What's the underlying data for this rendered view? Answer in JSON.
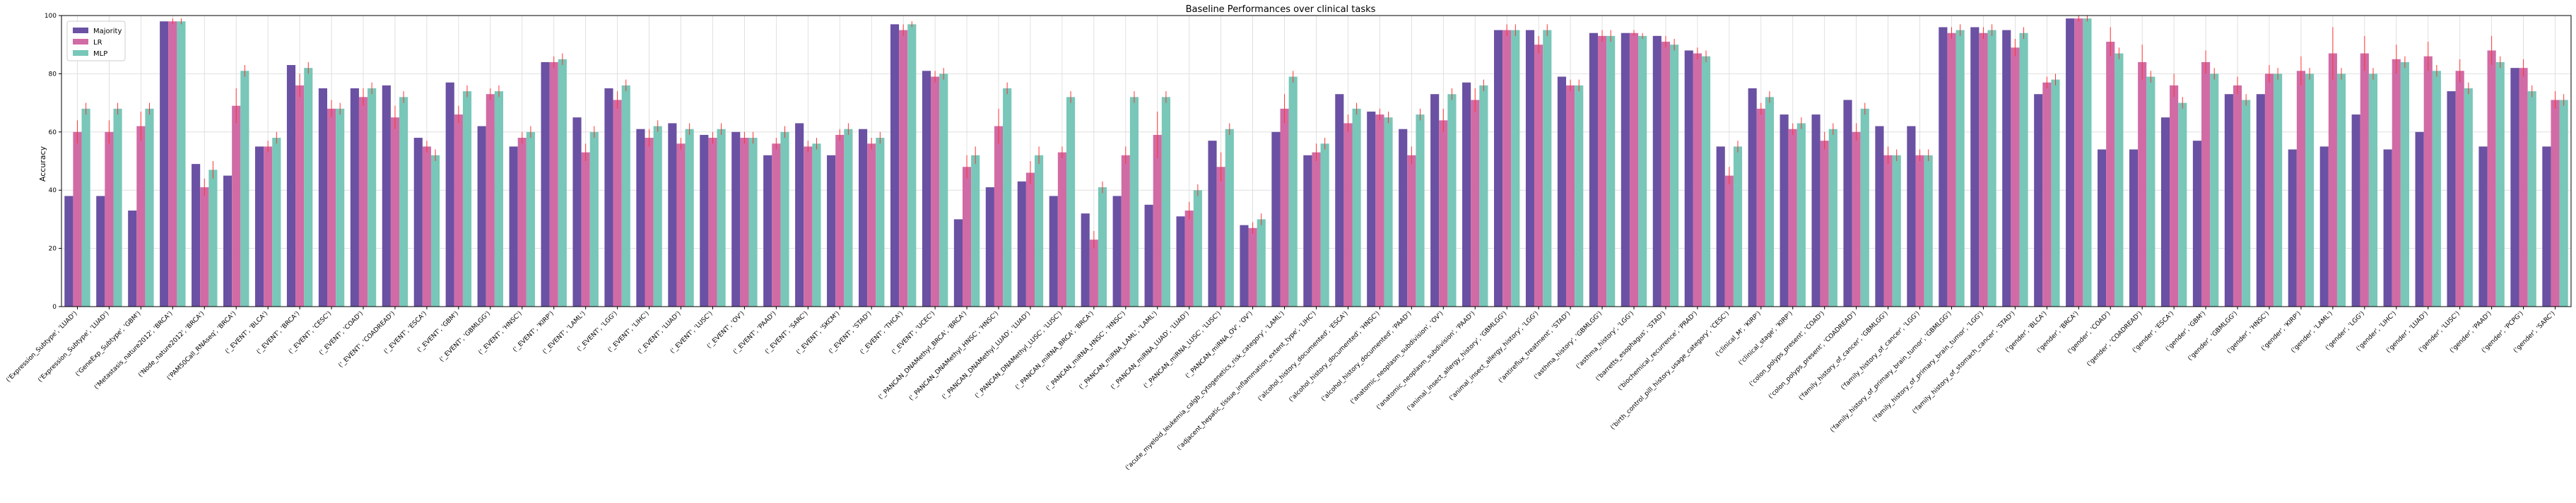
{
  "chart_data": {
    "type": "bar",
    "title": "Baseline Performances over clinical tasks",
    "xlabel": "",
    "ylabel": "Accuracy",
    "ylim": [
      0,
      100
    ],
    "yticks": [
      0,
      20,
      40,
      60,
      80,
      100
    ],
    "grid": true,
    "legend_position": "top-left",
    "categories": [
      "('Expression_Subtype', 'LUAD')",
      "('Expression_Subtype', 'LUAD')",
      "('GeneExp_Subtype', 'GBM')",
      "('Metastasis_nature2012', 'BRCA')",
      "('Node_nature2012', 'BRCA')",
      "('PAM50Call_RNAseq', 'BRCA')",
      "('_EVENT', 'BLCA')",
      "('_EVENT', 'BRCA')",
      "('_EVENT', 'CESC')",
      "('_EVENT', 'COAD')",
      "('_EVENT', 'COADREAD')",
      "('_EVENT', 'ESCA')",
      "('_EVENT', 'GBM')",
      "('_EVENT', 'GBMLGG')",
      "('_EVENT', 'HNSC')",
      "('_EVENT', 'KIRP')",
      "('_EVENT', 'LAML')",
      "('_EVENT', 'LGG')",
      "('_EVENT', 'LIHC')",
      "('_EVENT', 'LUAD')",
      "('_EVENT', 'LUSC')",
      "('_EVENT', 'OV')",
      "('_EVENT', 'PAAD')",
      "('_EVENT', 'SARC')",
      "('_EVENT', 'SKCM')",
      "('_EVENT', 'STAD')",
      "('_EVENT', 'THCA')",
      "('_EVENT', 'UCEC')",
      "('_PANCAN_DNAMethyl_BRCA', 'BRCA')",
      "('_PANCAN_DNAMethyl_HNSC', 'HNSC')",
      "('_PANCAN_DNAMethyl_LUAD', 'LUAD')",
      "('_PANCAN_DNAMethyl_LUSC', 'LUSC')",
      "('_PANCAN_miRNA_BRCA', 'BRCA')",
      "('_PANCAN_miRNA_HNSC', 'HNSC')",
      "('_PANCAN_miRNA_LAML', 'LAML')",
      "('_PANCAN_miRNA_LUAD', 'LUAD')",
      "('_PANCAN_miRNA_LUSC', 'LUSC')",
      "('_PANCAN_miRNA_OV', 'OV')",
      "('acute_myeloid_leukemia_calgb_cytogenetics_risk_category', 'LAML')",
      "('adjacent_hepatic_tissue_inflammation_extent_type', 'LIHC')",
      "('alcohol_history_documented', 'ESCA')",
      "('alcohol_history_documented', 'HNSC')",
      "('alcohol_history_documented', 'PAAD')",
      "('anatomic_neoplasm_subdivision', 'OV')",
      "('anatomic_neoplasm_subdivision', 'PAAD')",
      "('animal_insect_allergy_history', 'GBMLGG')",
      "('animal_insect_allergy_history', 'LGG')",
      "('antireflux_treatment', 'STAD')",
      "('asthma_history', 'GBMLGG')",
      "('asthma_history', 'LGG')",
      "('barretts_esophagus', 'STAD')",
      "('biochemical_recurrence', 'PRAD')",
      "('birth_control_pill_history_usage_category', 'CESC')",
      "('clinical_M', 'KIRP')",
      "('clinical_stage', 'KIRP')",
      "('colon_polyps_present', 'COAD')",
      "('colon_polyps_present', 'COADREAD')",
      "('family_history_of_cancer', 'GBMLGG')",
      "('family_history_of_cancer', 'LGG')",
      "('family_history_of_primary_brain_tumor', 'GBMLGG')",
      "('family_history_of_primary_brain_tumor', 'LGG')",
      "('family_history_of_stomach_cancer', 'STAD')",
      "('gender', 'BLCA')",
      "('gender', 'BRCA')",
      "('gender', 'COAD')",
      "('gender', 'COADREAD')",
      "('gender', 'ESCA')",
      "('gender', 'GBM')",
      "('gender', 'GBMLGG')",
      "('gender', 'HNSC')",
      "('gender', 'KIRP')",
      "('gender', 'LAML')",
      "('gender', 'LGG')",
      "('gender', 'LIHC')",
      "('gender', 'LUAD')",
      "('gender', 'LUSC')",
      "('gender', 'PAAD')",
      "('gender', 'PCPG')",
      "('gender', 'SARC')"
    ],
    "series": [
      {
        "name": "Majority",
        "color": "#6a51a3",
        "values": [
          38,
          38,
          33,
          98,
          49,
          45,
          55,
          83,
          75,
          75,
          76,
          58,
          77,
          62,
          55,
          84,
          65,
          75,
          61,
          63,
          59,
          60,
          52,
          63,
          52,
          61,
          97,
          81,
          30,
          41,
          43,
          38,
          32,
          38,
          35,
          31,
          57,
          28,
          60,
          52,
          73,
          67,
          61,
          73,
          77,
          95,
          95,
          79,
          94,
          94,
          93,
          88,
          55,
          75,
          66,
          66,
          71,
          62,
          62,
          96,
          96,
          95,
          73,
          99,
          54,
          54,
          65,
          57,
          73,
          73,
          54,
          55,
          66,
          54,
          60,
          74,
          55,
          82,
          55
        ],
        "errors": [
          0,
          0,
          0,
          0,
          0,
          0,
          0,
          0,
          0,
          0,
          0,
          0,
          0,
          0,
          0,
          0,
          0,
          0,
          0,
          0,
          0,
          0,
          0,
          0,
          0,
          0,
          0,
          0,
          0,
          0,
          0,
          0,
          0,
          0,
          0,
          0,
          0,
          0,
          0,
          0,
          0,
          0,
          0,
          0,
          0,
          0,
          0,
          0,
          0,
          0,
          0,
          0,
          0,
          0,
          0,
          0,
          0,
          0,
          0,
          0,
          0,
          0,
          0,
          0,
          0,
          0,
          0,
          0,
          0,
          0,
          0,
          0,
          0,
          0,
          0,
          0,
          0,
          0,
          0
        ]
      },
      {
        "name": "LR",
        "color": "#d16ba5",
        "values": [
          60,
          60,
          62,
          98,
          41,
          69,
          55,
          76,
          68,
          72,
          65,
          55,
          66,
          73,
          58,
          84,
          53,
          71,
          58,
          56,
          58,
          58,
          56,
          55,
          59,
          56,
          95,
          79,
          48,
          62,
          46,
          53,
          23,
          52,
          59,
          33,
          48,
          27,
          68,
          53,
          63,
          66,
          52,
          64,
          71,
          95,
          90,
          76,
          93,
          94,
          91,
          87,
          45,
          68,
          61,
          57,
          60,
          52,
          52,
          94,
          94,
          89,
          77,
          99,
          91,
          84,
          76,
          84,
          76,
          80,
          81,
          87,
          87,
          85,
          86,
          81,
          88,
          82,
          71
        ],
        "errors": [
          4,
          4,
          5,
          1,
          3,
          6,
          2,
          4,
          3,
          3,
          4,
          2,
          3,
          2,
          2,
          2,
          3,
          3,
          3,
          2,
          2,
          2,
          2,
          2,
          2,
          2,
          2,
          2,
          4,
          6,
          4,
          2,
          3,
          3,
          8,
          3,
          5,
          2,
          5,
          3,
          3,
          2,
          3,
          4,
          4,
          2,
          3,
          2,
          2,
          1,
          2,
          2,
          3,
          2,
          2,
          3,
          3,
          3,
          2,
          2,
          2,
          3,
          2,
          1,
          5,
          6,
          4,
          4,
          3,
          3,
          5,
          9,
          6,
          5,
          5,
          4,
          5,
          3,
          3
        ]
      },
      {
        "name": "MLP",
        "color": "#78c7b8",
        "values": [
          68,
          68,
          68,
          98,
          47,
          81,
          58,
          82,
          68,
          75,
          72,
          52,
          74,
          74,
          60,
          85,
          60,
          76,
          62,
          61,
          61,
          58,
          60,
          56,
          61,
          58,
          97,
          80,
          52,
          75,
          52,
          72,
          41,
          72,
          72,
          40,
          61,
          30,
          79,
          56,
          68,
          65,
          66,
          73,
          76,
          95,
          95,
          76,
          93,
          93,
          90,
          86,
          55,
          72,
          63,
          61,
          68,
          52,
          52,
          95,
          95,
          94,
          78,
          99,
          87,
          79,
          70,
          80,
          71,
          80,
          80,
          80,
          80,
          84,
          81,
          75,
          84,
          74,
          71
        ],
        "errors": [
          2,
          2,
          2,
          1,
          3,
          2,
          2,
          2,
          2,
          2,
          2,
          2,
          2,
          2,
          2,
          2,
          2,
          2,
          2,
          2,
          2,
          2,
          2,
          2,
          2,
          2,
          1,
          2,
          3,
          2,
          3,
          2,
          2,
          2,
          2,
          2,
          2,
          2,
          2,
          2,
          2,
          2,
          2,
          2,
          2,
          2,
          2,
          2,
          2,
          1,
          2,
          2,
          2,
          2,
          2,
          2,
          2,
          2,
          2,
          2,
          2,
          2,
          2,
          1,
          2,
          2,
          2,
          2,
          2,
          2,
          2,
          2,
          2,
          2,
          2,
          2,
          2,
          2,
          2
        ]
      }
    ]
  }
}
